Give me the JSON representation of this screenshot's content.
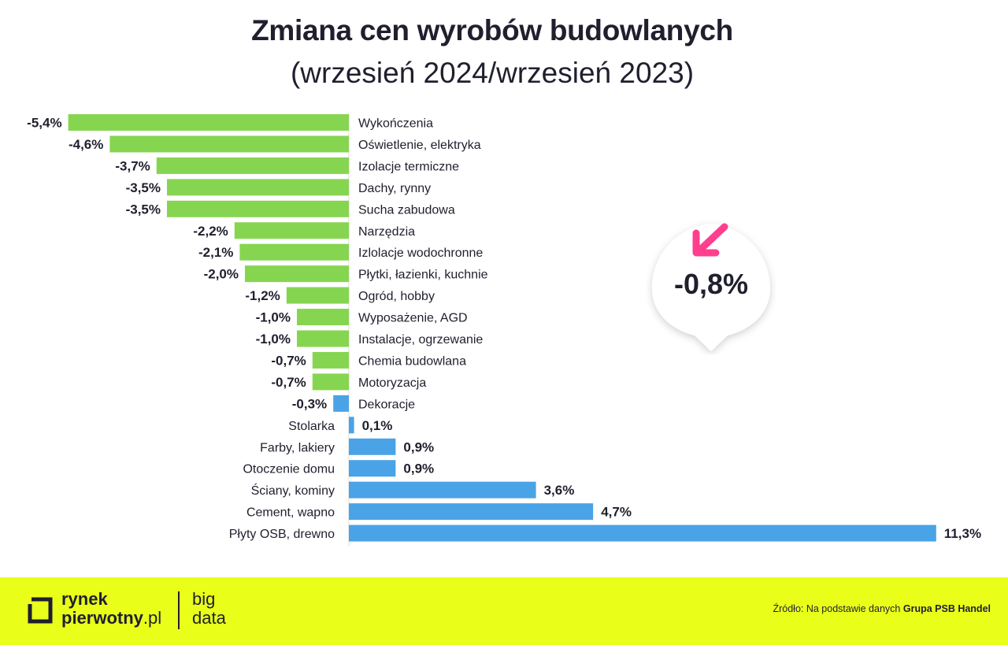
{
  "header": {
    "title": "Zmiana cen wyrobów budowlanych",
    "subtitle": "(wrzesień 2024/wrzesień 2023)"
  },
  "badge": {
    "value": "-0,8%",
    "icon": "arrow-down-left-icon",
    "arrow_color": "#ff3f8e"
  },
  "footer": {
    "logo_line1": "rynek",
    "logo_line2": "pierwotny",
    "logo_suffix": ".pl",
    "logo_big1": "big",
    "logo_big2": "data",
    "source_prefix": "Źródło: Na podstawie danych",
    "source_name": "Grupa PSB Handel",
    "background": "#e9ff1a"
  },
  "chart_data": {
    "type": "bar",
    "orientation": "horizontal",
    "title": "Zmiana cen wyrobów budowlanych",
    "subtitle": "(wrzesień 2024/wrzesień 2023)",
    "unit": "%",
    "colors": {
      "negative": "#86d551",
      "positive": "#4aa3e6",
      "small_negative": "#4aa3e6"
    },
    "categories": [
      "Wykończenia",
      "Oświetlenie, elektryka",
      "Izolacje termiczne",
      "Dachy, rynny",
      "Sucha zabudowa",
      "Narzędzia",
      "Izlolacje wodochronne",
      "Płytki, łazienki, kuchnie",
      "Ogród, hobby",
      "Wyposażenie, AGD",
      "Instalacje, ogrzewanie",
      "Chemia budowlana",
      "Motoryzacja",
      "Dekoracje",
      "Stolarka",
      "Farby, lakiery",
      "Otoczenie domu",
      "Ściany, kominy",
      "Cement, wapno",
      "Płyty OSB, drewno"
    ],
    "values": [
      -5.4,
      -4.6,
      -3.7,
      -3.5,
      -3.5,
      -2.2,
      -2.1,
      -2.0,
      -1.2,
      -1.0,
      -1.0,
      -0.7,
      -0.7,
      -0.3,
      0.1,
      0.9,
      0.9,
      3.6,
      4.7,
      11.3
    ],
    "value_labels": [
      "-5,4%",
      "-4,6%",
      "-3,7%",
      "-3,5%",
      "-3,5%",
      "-2,2%",
      "-2,1%",
      "-2,0%",
      "-1,2%",
      "-1,0%",
      "-1,0%",
      "-0,7%",
      "-0,7%",
      "-0,3%",
      "0,1%",
      "0,9%",
      "0,9%",
      "3,6%",
      "4,7%",
      "11,3%"
    ],
    "average_label": "-0,8%",
    "grid": false
  }
}
